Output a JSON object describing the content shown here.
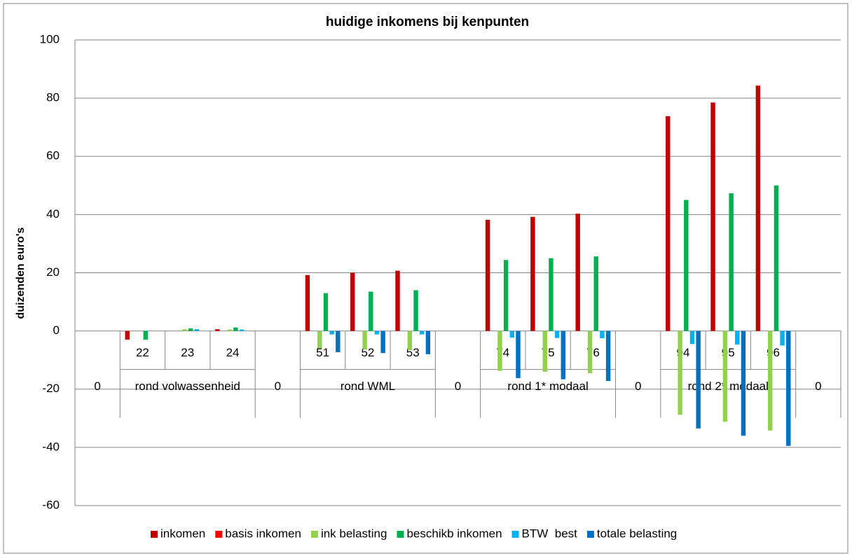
{
  "chart_data": {
    "type": "bar",
    "title": "huidige inkomens bij kenpunten",
    "y_label": "duizenden euro's",
    "categories": [
      "0",
      "22",
      "23",
      "24",
      "0",
      "51",
      "52",
      "53",
      "0",
      "74",
      "75",
      "76",
      "0",
      "94",
      "95",
      "96",
      "0"
    ],
    "category_groups": [
      null,
      "rond volwassenheid",
      "rond volwassenheid",
      "rond volwassenheid",
      null,
      "rond WML",
      "rond WML",
      "rond WML",
      null,
      "rond 1* modaal",
      "rond 1* modaal",
      "rond 1* modaal",
      null,
      "rond 2* modaal",
      "rond 2* modaal",
      "rond 2* modaal",
      null
    ],
    "series": [
      {
        "name": "inkomen",
        "color": "#c00000",
        "values": [
          0,
          -3,
          0,
          0.6,
          0,
          19.2,
          20,
          20.7,
          0,
          38.2,
          39.2,
          40.3,
          0,
          73.8,
          78.5,
          84.3,
          0
        ]
      },
      {
        "name": "basis inkomen",
        "color": "#ff0000",
        "values": [
          0,
          0,
          0,
          0,
          0,
          0,
          0,
          0,
          0,
          0,
          0,
          0,
          0,
          0,
          0,
          0,
          0
        ]
      },
      {
        "name": "ink belasting",
        "color": "#92d050",
        "values": [
          0,
          0,
          0.6,
          0.5,
          0,
          -6,
          -6.3,
          -6.6,
          0,
          -13.7,
          -14,
          -14.5,
          0,
          -28.8,
          -31.2,
          -34.2,
          0
        ]
      },
      {
        "name": "beschikb inkomen",
        "color": "#00b050",
        "values": [
          0,
          -3,
          0.9,
          1.2,
          0,
          13,
          13.5,
          14,
          0,
          24.4,
          25,
          25.6,
          0,
          45,
          47.3,
          50,
          0
        ]
      },
      {
        "name": "BTW  best",
        "color": "#00b0f0",
        "values": [
          0,
          0,
          0.6,
          0.5,
          0,
          -1.2,
          -1.2,
          -1.2,
          0,
          -2.3,
          -2.4,
          -2.5,
          0,
          -4.5,
          -4.7,
          -5,
          0
        ]
      },
      {
        "name": "totale belasting",
        "color": "#0070c0",
        "values": [
          0,
          0,
          0,
          0,
          0,
          -7.3,
          -7.6,
          -8,
          0,
          -16.2,
          -16.6,
          -17.2,
          0,
          -33.5,
          -36,
          -39.5,
          0
        ]
      }
    ],
    "ylim": [
      -60,
      100
    ],
    "yticks": [
      -60,
      -40,
      -20,
      0,
      20,
      40,
      60,
      80,
      100
    ],
    "grid": true,
    "legend": "bottom"
  }
}
